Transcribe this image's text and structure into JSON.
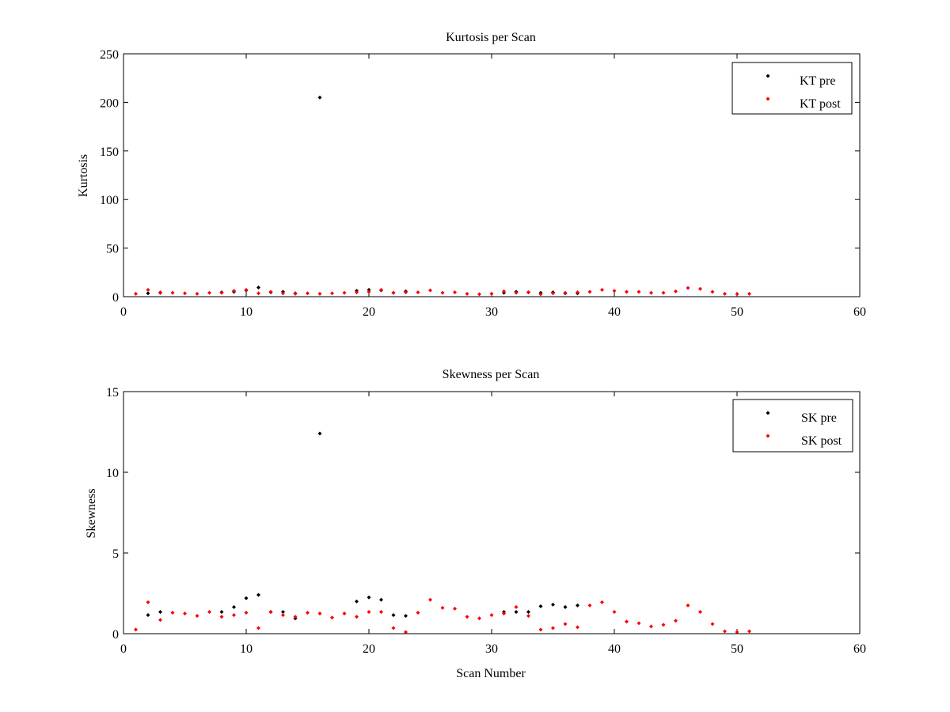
{
  "chart_data": [
    {
      "type": "scatter",
      "title": "Kurtosis per Scan",
      "xlabel": "",
      "ylabel": "Kurtosis",
      "xlim": [
        0,
        60
      ],
      "ylim": [
        0,
        250
      ],
      "xticks": [
        0,
        10,
        20,
        30,
        40,
        50,
        60
      ],
      "yticks": [
        0,
        50,
        100,
        150,
        200,
        250
      ],
      "grid": false,
      "legend_position": "top-right",
      "series": [
        {
          "name": "KT pre",
          "color": "#000000",
          "points": [
            [
              2,
              3.5
            ],
            [
              3,
              4
            ],
            [
              8,
              4.5
            ],
            [
              9,
              5
            ],
            [
              10,
              6.5
            ],
            [
              11,
              9.5
            ],
            [
              12,
              4.5
            ],
            [
              13,
              5
            ],
            [
              14,
              3.5
            ],
            [
              16,
              205
            ],
            [
              19,
              6
            ],
            [
              20,
              7
            ],
            [
              21,
              6.5
            ],
            [
              22,
              4
            ],
            [
              23,
              5.5
            ],
            [
              31,
              4
            ],
            [
              32,
              5
            ],
            [
              33,
              4.5
            ],
            [
              34,
              4
            ],
            [
              35,
              4.5
            ],
            [
              36,
              3.5
            ],
            [
              37,
              3.5
            ]
          ]
        },
        {
          "name": "KT post",
          "color": "#ff0000",
          "points": [
            [
              1,
              3
            ],
            [
              2,
              7
            ],
            [
              3,
              4.5
            ],
            [
              4,
              4
            ],
            [
              5,
              3.5
            ],
            [
              6,
              3
            ],
            [
              7,
              4
            ],
            [
              8,
              4
            ],
            [
              9,
              6
            ],
            [
              10,
              7
            ],
            [
              11,
              3.5
            ],
            [
              12,
              5
            ],
            [
              13,
              3.5
            ],
            [
              14,
              3
            ],
            [
              15,
              3.5
            ],
            [
              16,
              3
            ],
            [
              17,
              3.5
            ],
            [
              18,
              4
            ],
            [
              19,
              4.5
            ],
            [
              20,
              5
            ],
            [
              21,
              7
            ],
            [
              22,
              4
            ],
            [
              23,
              4.5
            ],
            [
              24,
              4.5
            ],
            [
              25,
              6.5
            ],
            [
              26,
              4
            ],
            [
              27,
              4.5
            ],
            [
              28,
              3
            ],
            [
              29,
              2.5
            ],
            [
              30,
              3
            ],
            [
              31,
              5.5
            ],
            [
              32,
              4
            ],
            [
              33,
              4.5
            ],
            [
              34,
              2.5
            ],
            [
              35,
              3.5
            ],
            [
              36,
              4
            ],
            [
              37,
              4.5
            ],
            [
              38,
              5
            ],
            [
              39,
              7
            ],
            [
              40,
              6
            ],
            [
              41,
              5
            ],
            [
              42,
              5
            ],
            [
              43,
              4
            ],
            [
              44,
              4
            ],
            [
              45,
              5.5
            ],
            [
              46,
              9
            ],
            [
              47,
              8
            ],
            [
              48,
              5
            ],
            [
              49,
              3
            ],
            [
              50,
              2.5
            ],
            [
              51,
              3
            ]
          ]
        }
      ]
    },
    {
      "type": "scatter",
      "title": "Skewness per Scan",
      "xlabel": "Scan Number",
      "ylabel": "Skewness",
      "xlim": [
        0,
        60
      ],
      "ylim": [
        0,
        15
      ],
      "xticks": [
        0,
        10,
        20,
        30,
        40,
        50,
        60
      ],
      "yticks": [
        0,
        5,
        10,
        15
      ],
      "grid": false,
      "legend_position": "top-right",
      "series": [
        {
          "name": "SK pre",
          "color": "#000000",
          "points": [
            [
              2,
              1.15
            ],
            [
              3,
              1.35
            ],
            [
              8,
              1.35
            ],
            [
              9,
              1.65
            ],
            [
              10,
              2.2
            ],
            [
              11,
              2.4
            ],
            [
              12,
              1.35
            ],
            [
              13,
              1.35
            ],
            [
              14,
              0.95
            ],
            [
              16,
              12.4
            ],
            [
              19,
              2.0
            ],
            [
              20,
              2.25
            ],
            [
              21,
              2.1
            ],
            [
              22,
              1.15
            ],
            [
              23,
              1.1
            ],
            [
              31,
              1.35
            ],
            [
              32,
              1.35
            ],
            [
              33,
              1.35
            ],
            [
              34,
              1.7
            ],
            [
              35,
              1.8
            ],
            [
              36,
              1.65
            ],
            [
              37,
              1.75
            ]
          ]
        },
        {
          "name": "SK post",
          "color": "#ff0000",
          "points": [
            [
              1,
              0.25
            ],
            [
              2,
              1.95
            ],
            [
              3,
              0.85
            ],
            [
              4,
              1.3
            ],
            [
              5,
              1.25
            ],
            [
              6,
              1.1
            ],
            [
              7,
              1.35
            ],
            [
              8,
              1.05
            ],
            [
              9,
              1.15
            ],
            [
              10,
              1.3
            ],
            [
              11,
              0.35
            ],
            [
              12,
              1.35
            ],
            [
              13,
              1.15
            ],
            [
              14,
              1.05
            ],
            [
              15,
              1.3
            ],
            [
              16,
              1.25
            ],
            [
              17,
              1.0
            ],
            [
              18,
              1.25
            ],
            [
              19,
              1.05
            ],
            [
              20,
              1.35
            ],
            [
              21,
              1.35
            ],
            [
              22,
              0.35
            ],
            [
              23,
              0.1
            ],
            [
              24,
              1.3
            ],
            [
              25,
              2.1
            ],
            [
              26,
              1.6
            ],
            [
              27,
              1.55
            ],
            [
              28,
              1.05
            ],
            [
              29,
              0.95
            ],
            [
              30,
              1.15
            ],
            [
              31,
              1.25
            ],
            [
              32,
              1.65
            ],
            [
              33,
              1.1
            ],
            [
              34,
              0.25
            ],
            [
              35,
              0.35
            ],
            [
              36,
              0.6
            ],
            [
              37,
              0.4
            ],
            [
              38,
              1.75
            ],
            [
              39,
              1.95
            ],
            [
              40,
              1.35
            ],
            [
              41,
              0.75
            ],
            [
              42,
              0.65
            ],
            [
              43,
              0.45
            ],
            [
              44,
              0.55
            ],
            [
              45,
              0.8
            ],
            [
              46,
              1.75
            ],
            [
              47,
              1.35
            ],
            [
              48,
              0.6
            ],
            [
              49,
              0.15
            ],
            [
              50,
              0.1
            ],
            [
              51,
              0.15
            ]
          ]
        }
      ]
    }
  ]
}
